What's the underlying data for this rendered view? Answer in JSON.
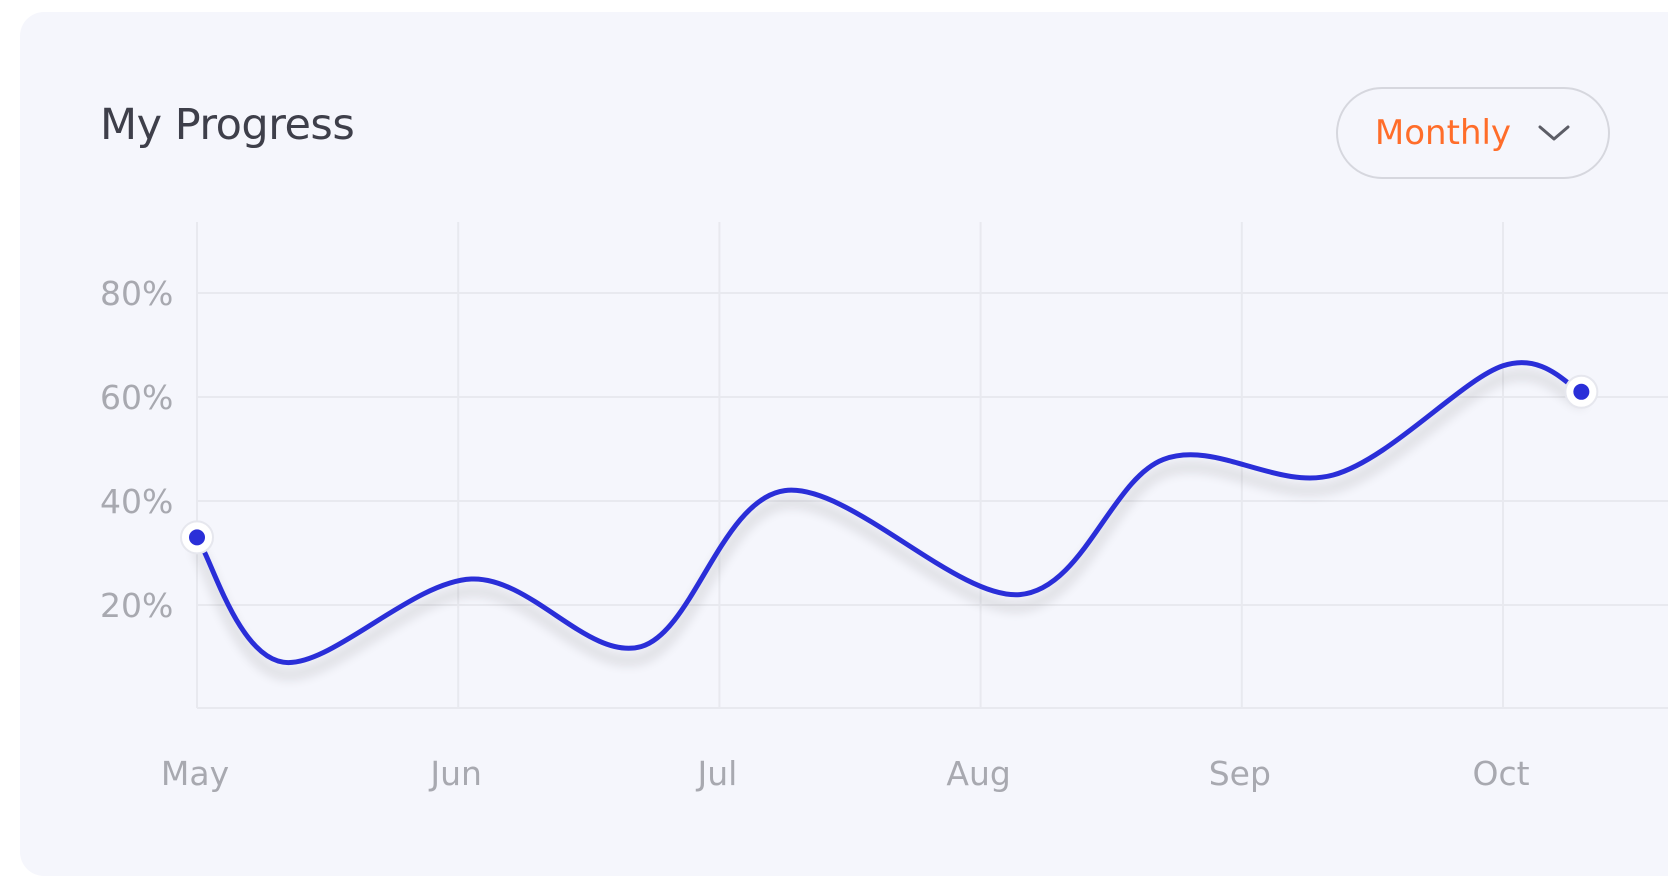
{
  "header": {
    "title": "My Progress",
    "period_label": "Monthly"
  },
  "icons": {
    "period_dropdown": "chevron-down-icon"
  },
  "colors": {
    "accent": "#ff6d2a",
    "line": "#2a2fd8",
    "grid": "#e8e9ef",
    "tick_text": "#a8a9b0",
    "title_text": "#3e3f4a",
    "card_bg": "#f5f6fc"
  },
  "chart_data": {
    "type": "line",
    "title": "My Progress",
    "xlabel": "",
    "ylabel": "",
    "categories": [
      "May",
      "Jun",
      "Jul",
      "Aug",
      "Sep",
      "Oct"
    ],
    "y_ticks": [
      "80%",
      "60%",
      "40%",
      "20%"
    ],
    "y_tick_values": [
      80,
      60,
      40,
      20
    ],
    "ylim": [
      -1,
      92
    ],
    "xlim": [
      0,
      5.3
    ],
    "grid": true,
    "legend": "none",
    "series": [
      {
        "x": [
          0,
          0.33,
          1.05,
          1.7,
          2.25,
          3.15,
          3.7,
          4.35,
          5.0,
          5.3
        ],
        "y": [
          33,
          9,
          25,
          12,
          42,
          22,
          48,
          45,
          66,
          61
        ],
        "start_marker": true,
        "end_marker": true
      }
    ]
  }
}
